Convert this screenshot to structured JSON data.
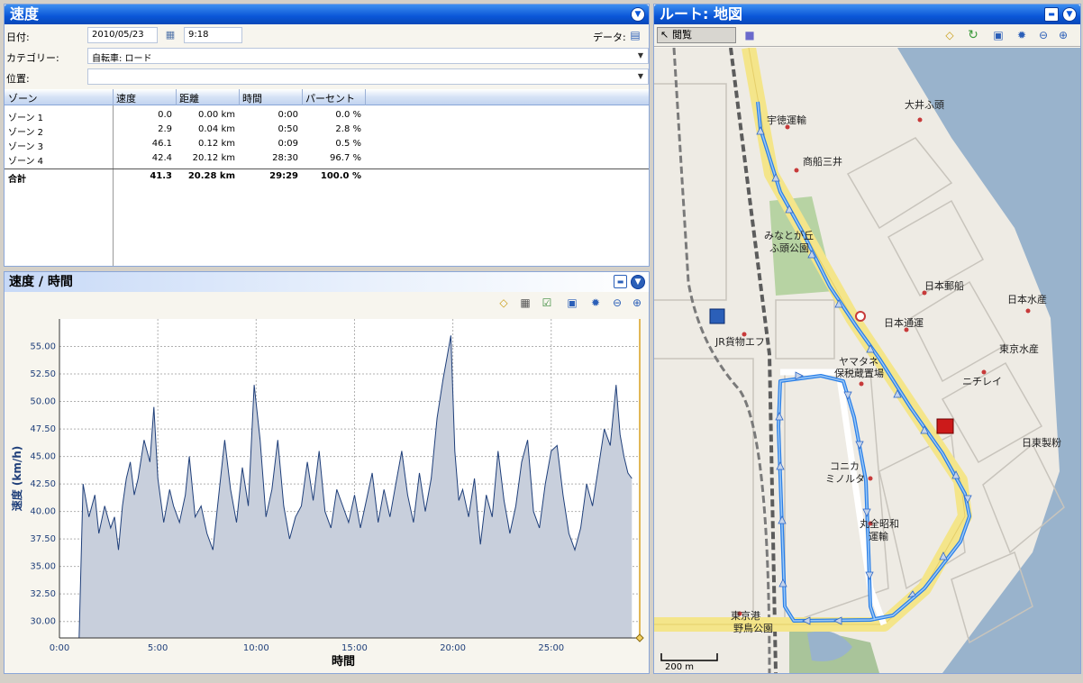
{
  "left_panel": {
    "title": "速度",
    "date_label": "日付:",
    "date_value": "2010/05/23",
    "time_value": "9:18",
    "data_label": "データ:",
    "category_label": "カテゴリー:",
    "category_value": "自転車: ロード",
    "location_label": "位置:",
    "location_value": ""
  },
  "zone_table": {
    "headers": [
      "ゾーン",
      "速度",
      "距離",
      "時間",
      "パーセント"
    ],
    "rows": [
      {
        "zone": "ゾーン 1",
        "speed": "0.0",
        "distance": "0.00 km",
        "time": "0:00",
        "percent": "0.0 %"
      },
      {
        "zone": "ゾーン 2",
        "speed": "2.9",
        "distance": "0.04 km",
        "time": "0:50",
        "percent": "2.8 %"
      },
      {
        "zone": "ゾーン 3",
        "speed": "46.1",
        "distance": "0.12 km",
        "time": "0:09",
        "percent": "0.5 %"
      },
      {
        "zone": "ゾーン 4",
        "speed": "42.4",
        "distance": "20.12 km",
        "time": "28:30",
        "percent": "96.7 %"
      }
    ],
    "total": {
      "zone": "合計",
      "speed": "41.3",
      "distance": "20.28 km",
      "time": "29:29",
      "percent": "100.0 %"
    }
  },
  "chart_panel": {
    "title": "速度 / 時間"
  },
  "chart_data": {
    "type": "area",
    "title": "速度 / 時間",
    "xlabel": "時間",
    "ylabel": "速度 (km/h)",
    "x_ticks": [
      "0:00",
      "5:00",
      "10:00",
      "15:00",
      "20:00",
      "25:00"
    ],
    "y_ticks": [
      "30.00",
      "32.50",
      "35.00",
      "37.50",
      "40.00",
      "42.50",
      "45.00",
      "47.50",
      "50.00",
      "52.50",
      "55.00"
    ],
    "xlim": [
      0,
      29.5
    ],
    "ylim": [
      28.5,
      57.5
    ],
    "grid": true,
    "fill_color": "#c8cfdc",
    "line_color": "#1f3f7a",
    "x": [
      1.0,
      1.2,
      1.5,
      1.8,
      2.0,
      2.3,
      2.6,
      2.8,
      3.0,
      3.2,
      3.4,
      3.6,
      3.8,
      4.0,
      4.3,
      4.6,
      4.8,
      5.0,
      5.3,
      5.6,
      5.8,
      6.1,
      6.4,
      6.6,
      6.9,
      7.2,
      7.5,
      7.8,
      8.1,
      8.4,
      8.7,
      9.0,
      9.3,
      9.6,
      9.9,
      10.2,
      10.5,
      10.8,
      11.1,
      11.4,
      11.7,
      12.0,
      12.3,
      12.6,
      12.9,
      13.2,
      13.5,
      13.8,
      14.1,
      14.4,
      14.7,
      15.0,
      15.3,
      15.6,
      15.9,
      16.2,
      16.5,
      16.8,
      17.1,
      17.4,
      17.7,
      18.0,
      18.3,
      18.6,
      18.9,
      19.2,
      19.5,
      19.7,
      19.9,
      20.1,
      20.3,
      20.5,
      20.8,
      21.1,
      21.4,
      21.7,
      22.0,
      22.3,
      22.6,
      22.9,
      23.2,
      23.5,
      23.8,
      24.1,
      24.4,
      24.7,
      25.0,
      25.3,
      25.6,
      25.9,
      26.2,
      26.5,
      26.8,
      27.1,
      27.4,
      27.7,
      28.0,
      28.3,
      28.5,
      28.7,
      28.9,
      29.1
    ],
    "y": [
      28.5,
      42.5,
      39.5,
      41.5,
      38.0,
      40.5,
      38.5,
      39.5,
      36.5,
      40.5,
      43.0,
      44.5,
      41.5,
      43.0,
      46.5,
      44.5,
      49.5,
      43.0,
      39.0,
      42.0,
      40.5,
      39.0,
      41.5,
      45.0,
      39.5,
      40.5,
      38.0,
      36.5,
      41.5,
      46.5,
      42.0,
      39.0,
      44.0,
      40.5,
      51.5,
      46.5,
      39.5,
      42.0,
      46.5,
      40.5,
      37.5,
      39.5,
      40.5,
      44.5,
      41.0,
      45.5,
      40.0,
      38.5,
      42.0,
      40.5,
      39.0,
      41.5,
      38.5,
      41.0,
      43.5,
      39.0,
      42.0,
      39.5,
      42.5,
      45.5,
      41.5,
      39.0,
      43.5,
      40.0,
      43.0,
      48.5,
      52.0,
      54.0,
      56.0,
      45.5,
      41.0,
      42.0,
      39.5,
      43.0,
      37.0,
      41.5,
      39.5,
      45.5,
      41.0,
      38.0,
      40.5,
      44.5,
      46.5,
      40.0,
      38.5,
      42.5,
      45.5,
      46.0,
      41.5,
      38.0,
      36.5,
      38.5,
      42.5,
      40.5,
      44.0,
      47.5,
      46.0,
      51.5,
      47.0,
      45.0,
      43.5,
      43.0
    ]
  },
  "map_panel": {
    "title": "ルート: 地図",
    "browse_label": "閲覧",
    "labels": [
      "宇徳運輸",
      "商船三井",
      "大井ふ頭",
      "みなとが丘",
      "ふ頭公園",
      "日本郵船",
      "日本水産",
      "日本通運",
      "東京水産",
      "JR貨物エフ",
      "ヤマタネ",
      "保税蔵置場",
      "ニチレイ",
      "日東製粉",
      "コニカ",
      "ミノルタ",
      "丸全昭和",
      "運輸",
      "東京港",
      "野鳥公園"
    ],
    "scale_label": "200 m"
  }
}
